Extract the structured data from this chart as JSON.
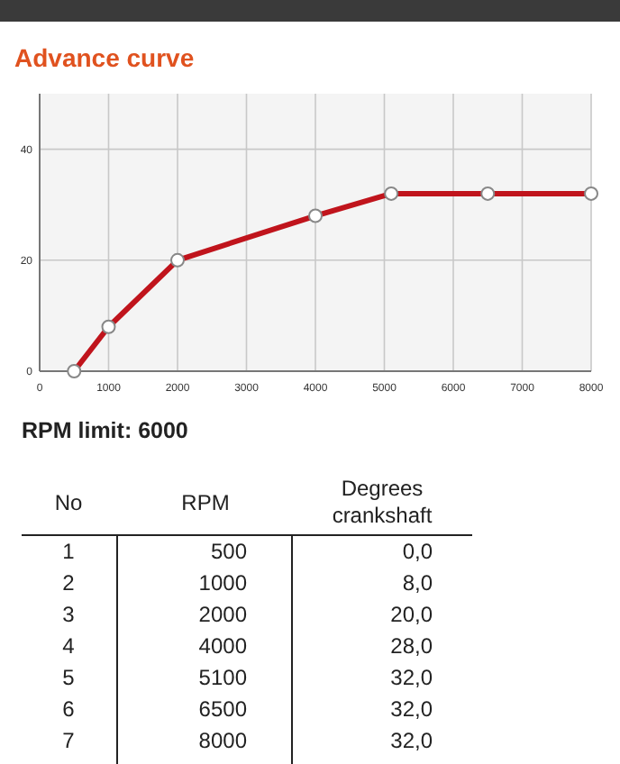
{
  "chart_data": {
    "type": "line",
    "title": "Advance curve",
    "x": [
      500,
      1000,
      2000,
      4000,
      5100,
      6500,
      8000
    ],
    "series": [
      {
        "color": "#c0141c",
        "values": [
          0,
          8,
          20,
          28,
          32,
          32,
          32
        ]
      }
    ],
    "xlim": [
      0,
      8000
    ],
    "xticks": [
      0,
      1000,
      2000,
      3000,
      4000,
      5000,
      6000,
      7000,
      8000
    ],
    "ylim": [
      0,
      50
    ],
    "yticks": [
      0,
      20,
      40
    ],
    "grid": true,
    "marker": "circle",
    "line_style": "solid",
    "annotations": [
      "RPM limit: 6000",
      "No",
      "RPM",
      "Degrees crankshaft",
      "1",
      "500",
      "0,0",
      "2",
      "1000",
      "8,0",
      "3",
      "2000",
      "20,0",
      "4",
      "4000",
      "28,0",
      "5",
      "5100",
      "32,0",
      "6",
      "6500",
      "32,0",
      "7",
      "8000",
      "32,0"
    ]
  }
}
